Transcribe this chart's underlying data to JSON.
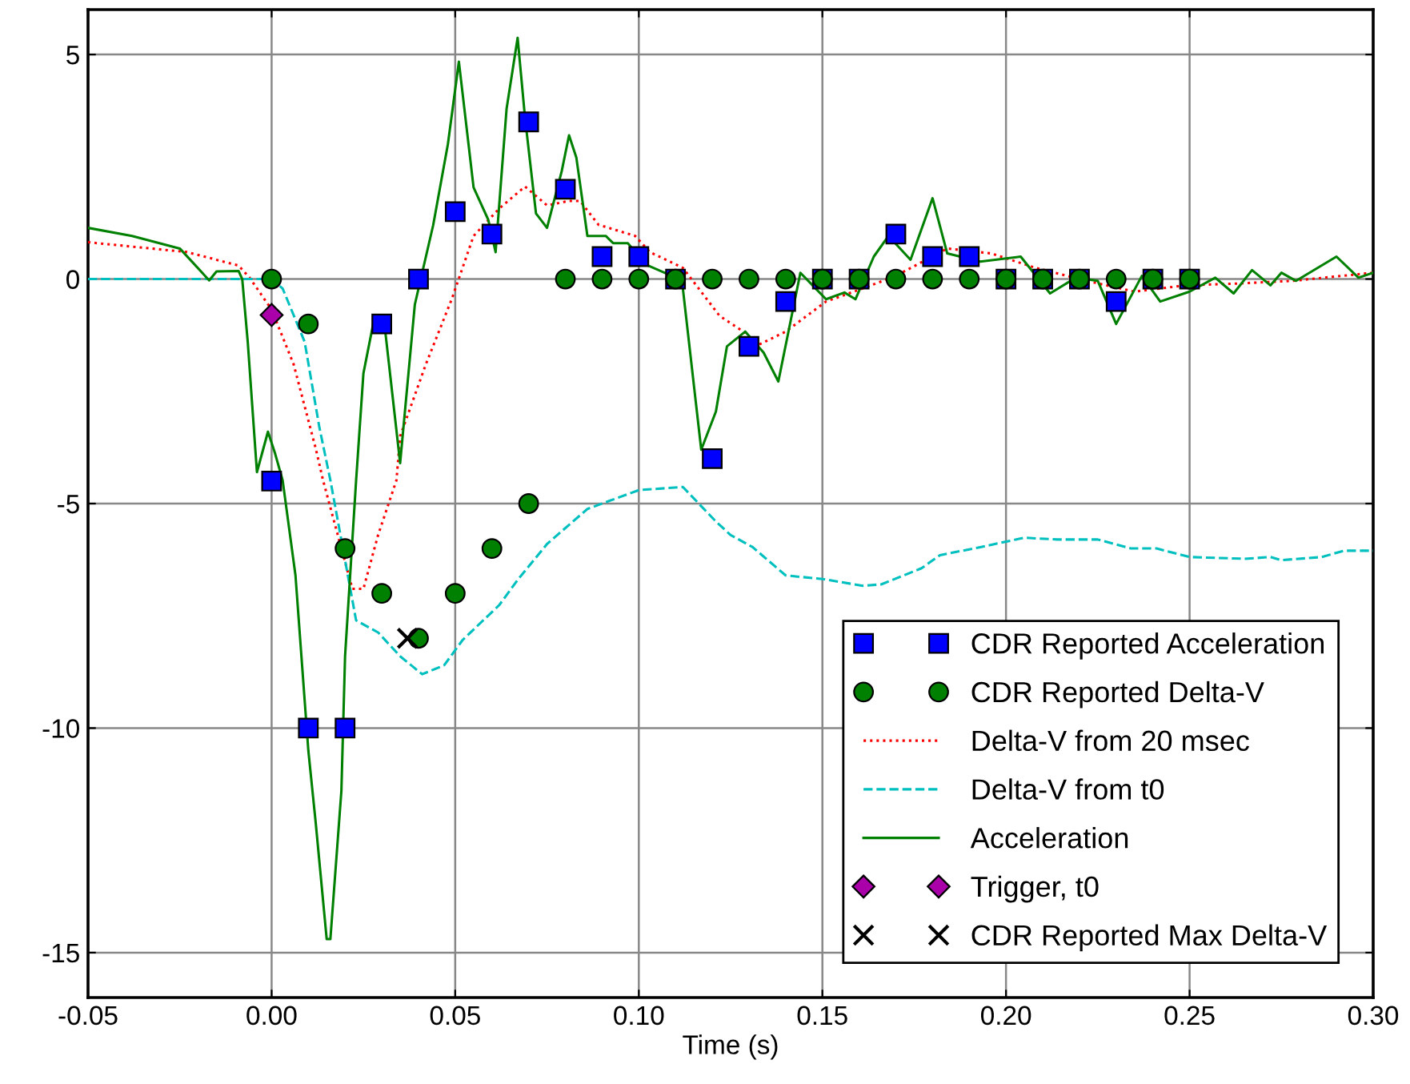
{
  "chart_data": {
    "type": "scatter",
    "xlabel": "Time (s)",
    "xlim": [
      -0.05,
      0.3
    ],
    "ylim": [
      -16,
      6
    ],
    "xticks": [
      {
        "value": -0.05,
        "label": "-0.05"
      },
      {
        "value": 0,
        "label": "0.00"
      },
      {
        "value": 0.05,
        "label": "0.05"
      },
      {
        "value": 0.1,
        "label": "0.10"
      },
      {
        "value": 0.15,
        "label": "0.15"
      },
      {
        "value": 0.2,
        "label": "0.20"
      },
      {
        "value": 0.25,
        "label": "0.25"
      },
      {
        "value": 0.3,
        "label": "0.30"
      }
    ],
    "yticks": [
      -15,
      -10,
      -5,
      0,
      5
    ],
    "grid": true,
    "legend": "bottom right",
    "series": [
      {
        "name": "CDR Reported Acceleration",
        "marker": "square",
        "color": "#0000ff",
        "x": [
          0,
          0.01,
          0.02,
          0.03,
          0.04,
          0.05,
          0.06,
          0.07,
          0.08,
          0.09,
          0.1,
          0.11,
          0.12,
          0.13,
          0.14,
          0.15,
          0.16,
          0.17,
          0.18,
          0.19,
          0.2,
          0.21,
          0.22,
          0.23,
          0.24,
          0.25
        ],
        "values": [
          -4.5,
          -10,
          -10,
          -1,
          0,
          1.5,
          1,
          3.5,
          2,
          0.5,
          0.5,
          0,
          -4,
          -1.5,
          -0.5,
          0,
          0,
          1,
          0.5,
          0.5,
          0,
          0,
          0,
          -0.5,
          0,
          0
        ]
      },
      {
        "name": "CDR Reported Delta-V",
        "marker": "circle",
        "color": "#008000",
        "x": [
          0,
          0.01,
          0.02,
          0.03,
          0.04,
          0.05,
          0.06,
          0.07,
          0.08,
          0.09,
          0.1,
          0.11,
          0.12,
          0.13,
          0.14,
          0.15,
          0.16,
          0.17,
          0.18,
          0.19,
          0.2,
          0.21,
          0.22,
          0.23,
          0.24,
          0.25
        ],
        "values": [
          0,
          -1,
          -6,
          -7,
          -8,
          -7,
          -6,
          -5,
          0,
          0,
          0,
          0,
          0,
          0,
          0,
          0,
          0,
          0,
          0,
          0,
          0,
          0,
          0,
          0,
          0,
          0
        ]
      },
      {
        "name": "Delta-V from 20 msec",
        "type": "line",
        "marker": "none",
        "line_style": "dotted",
        "color": "#ff0000",
        "x": [
          -0.05,
          -0.023,
          -0.009,
          -0.006,
          0,
          0.006,
          0.012,
          0.014,
          0.019,
          0.022,
          0.025,
          0.029,
          0.034,
          0.035,
          0.042,
          0.049,
          0.055,
          0.062,
          0.069,
          0.075,
          0.081,
          0.084,
          0.089,
          0.099,
          0.103,
          0.112,
          0.122,
          0.129,
          0.131,
          0.14,
          0.151,
          0.161,
          0.17,
          0.184,
          0.196,
          0.208,
          0.222,
          0.235,
          0.249,
          0.263,
          0.278,
          0.3
        ],
        "values": [
          0.82,
          0.6,
          0.3,
          0.03,
          -0.68,
          -1.9,
          -3.77,
          -4.48,
          -6.0,
          -6.9,
          -6.9,
          -5.7,
          -4.48,
          -3.5,
          -1.9,
          -0.46,
          0.96,
          1.57,
          2.06,
          1.64,
          1.74,
          1.74,
          1.21,
          0.96,
          0.6,
          0.25,
          -0.82,
          -1.2,
          -1.53,
          -1.17,
          -0.5,
          -0.21,
          0.07,
          0.68,
          0.57,
          0.25,
          -0.04,
          -0.28,
          -0.14,
          -0.1,
          -0.04,
          0.14
        ]
      },
      {
        "name": "Delta-V from t0",
        "type": "line",
        "marker": "none",
        "line_style": "dashed",
        "color": "#00bfbf",
        "x": [
          -0.05,
          0,
          0.003,
          0.009,
          0.013,
          0.016,
          0.02,
          0.023,
          0.029,
          0.035,
          0.041,
          0.047,
          0.052,
          0.062,
          0.067,
          0.075,
          0.086,
          0.1,
          0.112,
          0.121,
          0.125,
          0.131,
          0.14,
          0.15,
          0.161,
          0.166,
          0.177,
          0.182,
          0.193,
          0.205,
          0.214,
          0.225,
          0.234,
          0.241,
          0.25,
          0.265,
          0.272,
          0.275,
          0.286,
          0.292,
          0.3
        ],
        "values": [
          0,
          0,
          -0.21,
          -1.4,
          -3.3,
          -4.48,
          -6.26,
          -7.6,
          -7.87,
          -8.4,
          -8.8,
          -8.6,
          -8.04,
          -7.26,
          -6.7,
          -5.9,
          -5.12,
          -4.7,
          -4.63,
          -5.4,
          -5.7,
          -5.97,
          -6.6,
          -6.68,
          -6.83,
          -6.8,
          -6.44,
          -6.15,
          -5.97,
          -5.76,
          -5.8,
          -5.8,
          -6.0,
          -6.0,
          -6.19,
          -6.23,
          -6.19,
          -6.26,
          -6.19,
          -6.05,
          -6.05
        ]
      },
      {
        "name": "Acceleration",
        "type": "line",
        "marker": "none",
        "line_style": "solid",
        "color": "#008000",
        "x": [
          -0.05,
          -0.038,
          -0.025,
          -0.017,
          -0.015,
          -0.009,
          -0.008,
          -0.0065,
          -0.004,
          -0.001,
          0.001,
          0.003,
          0.0065,
          0.01,
          0.012,
          0.015,
          0.016,
          0.019,
          0.02,
          0.023,
          0.025,
          0.028,
          0.031,
          0.035,
          0.039,
          0.044,
          0.048,
          0.051,
          0.055,
          0.059,
          0.061,
          0.064,
          0.067,
          0.069,
          0.072,
          0.075,
          0.079,
          0.081,
          0.083,
          0.086,
          0.091,
          0.093,
          0.097,
          0.102,
          0.109,
          0.112,
          0.117,
          0.121,
          0.124,
          0.129,
          0.134,
          0.138,
          0.144,
          0.151,
          0.156,
          0.159,
          0.164,
          0.168,
          0.174,
          0.18,
          0.184,
          0.193,
          0.204,
          0.212,
          0.219,
          0.225,
          0.23,
          0.237,
          0.242,
          0.25,
          0.257,
          0.262,
          0.267,
          0.272,
          0.275,
          0.279,
          0.29,
          0.296,
          0.3
        ],
        "values": [
          1.14,
          0.96,
          0.68,
          -0.03,
          0.17,
          0.18,
          0.0,
          -1.4,
          -4.3,
          -3.4,
          -3.9,
          -4.48,
          -6.6,
          -10.5,
          -12.1,
          -14.7,
          -14.7,
          -11.4,
          -8.4,
          -4.5,
          -2.1,
          -0.86,
          -1.2,
          -4.1,
          -0.57,
          1.2,
          3.0,
          4.84,
          2.04,
          1.32,
          0.6,
          3.8,
          5.37,
          3.6,
          1.46,
          1.14,
          2.4,
          3.2,
          2.7,
          0.96,
          0.96,
          0.8,
          0.8,
          0.32,
          0.07,
          -0.21,
          -3.8,
          -2.95,
          -1.5,
          -1.17,
          -1.64,
          -2.28,
          0.14,
          -0.45,
          -0.3,
          -0.45,
          0.5,
          0.96,
          0.43,
          1.8,
          0.57,
          0.39,
          0.5,
          -0.32,
          0.03,
          -0.04,
          -1.0,
          0.07,
          -0.5,
          -0.28,
          0.03,
          -0.32,
          0.2,
          -0.14,
          0.14,
          -0.04,
          0.5,
          0.03,
          0.14
        ]
      },
      {
        "name": "Trigger, t0",
        "marker": "diamond",
        "color": "#aa00aa",
        "x": [
          0
        ],
        "values": [
          -0.8
        ]
      },
      {
        "name": "CDR Reported Max Delta-V",
        "marker": "cross",
        "color": "#000000",
        "x": [
          0.037
        ],
        "values": [
          -8
        ]
      }
    ]
  }
}
